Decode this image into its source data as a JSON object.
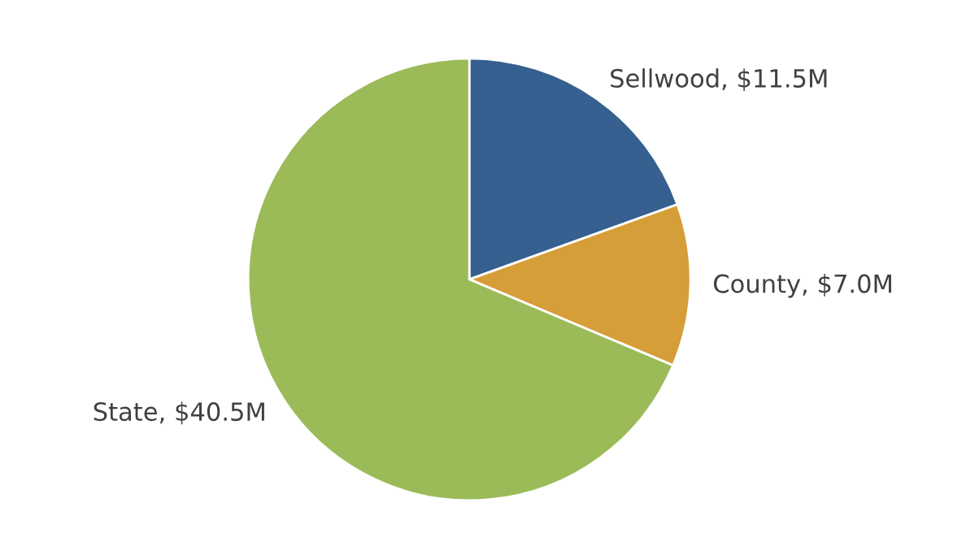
{
  "chart_data": {
    "type": "pie",
    "categories": [
      "Sellwood",
      "County",
      "State"
    ],
    "values": [
      11.5,
      7.0,
      40.5
    ],
    "value_labels": [
      "$11.5M",
      "$7.0M",
      "$40.5M"
    ],
    "colors": [
      "#35608f",
      "#d69e38",
      "#9bbb59"
    ],
    "legend": false
  }
}
